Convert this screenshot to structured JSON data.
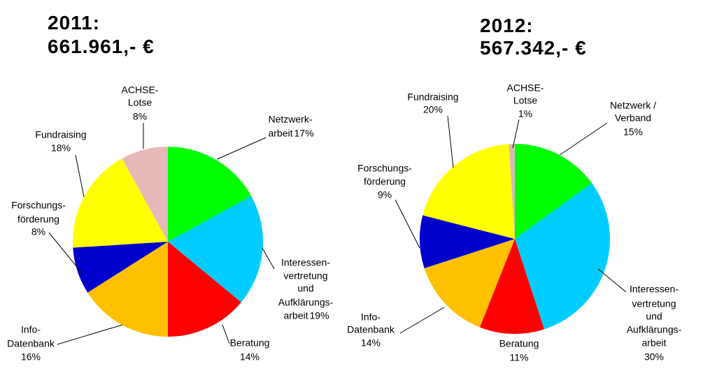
{
  "chart_data": [
    {
      "type": "pie",
      "title": "2011:",
      "subtitle": "661.961,- €",
      "categories": [
        [
          "Netzwerk-",
          "arbeit"
        ],
        [
          "Interessen-",
          "vertretung",
          "und",
          "Aufklärungs-",
          "arbeit"
        ],
        [
          "Beratung"
        ],
        [
          "Info-",
          "Datenbank"
        ],
        [
          "Forschungs-",
          "förderung"
        ],
        [
          "Fundraising"
        ],
        [
          "ACHSE-",
          "Lotse"
        ]
      ],
      "values": [
        17,
        19,
        14,
        16,
        8,
        18,
        8
      ],
      "value_labels": [
        "17%",
        "19%",
        "14%",
        "16%",
        "8%",
        "18%",
        "8%"
      ],
      "colors": [
        "#00ff00",
        "#00ccff",
        "#ff0000",
        "#ffc000",
        "#0000cc",
        "#ffff00",
        "#e6b9b8"
      ]
    },
    {
      "type": "pie",
      "title": "2012:",
      "subtitle": "567.342,- €",
      "categories": [
        [
          "Netzwerk /",
          "Verband"
        ],
        [
          "Interessen-",
          "vertretung",
          "und",
          "Aufklärungs-",
          "arbeit"
        ],
        [
          "Beratung"
        ],
        [
          "Info-",
          "Datenbank"
        ],
        [
          "Forschungs-",
          "förderung"
        ],
        [
          "Fundraising"
        ],
        [
          "ACHSE-",
          "Lotse"
        ]
      ],
      "values": [
        15,
        30,
        11,
        14,
        9,
        20,
        1
      ],
      "value_labels": [
        "15%",
        "30%",
        "11%",
        "14%",
        "9%",
        "20%",
        "1%"
      ],
      "colors": [
        "#00ff00",
        "#00ccff",
        "#ff0000",
        "#ffc000",
        "#0000cc",
        "#ffff00",
        "#d9b8b8"
      ]
    }
  ]
}
